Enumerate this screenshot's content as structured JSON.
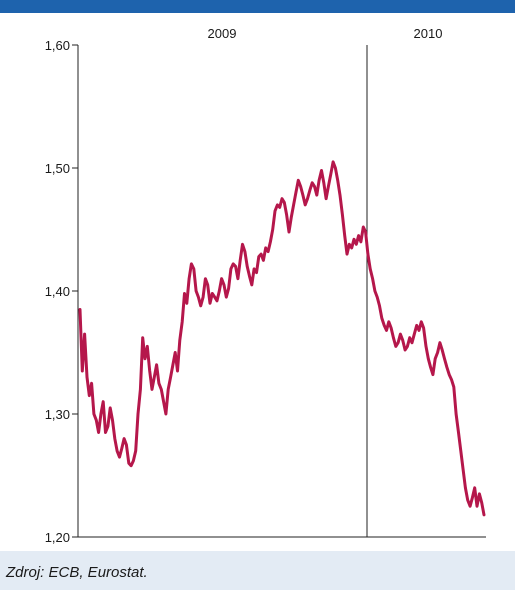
{
  "chart_data": {
    "type": "line",
    "title": "",
    "xlabel": "",
    "ylabel": "",
    "ylim": [
      1.2,
      1.6
    ],
    "yticks": [
      "1,20",
      "1,30",
      "1,40",
      "1,50",
      "1,60"
    ],
    "year_labels": [
      "2009",
      "2010"
    ],
    "grid": false,
    "colors": {
      "line": "#b5174b",
      "accent_bar": "#1e63ad",
      "background": "#e3ebf4",
      "plot_bg": "#ffffff"
    },
    "series": [
      {
        "values": [
          1.385,
          1.335,
          1.365,
          1.33,
          1.315,
          1.325,
          1.3,
          1.295,
          1.285,
          1.3,
          1.31,
          1.285,
          1.29,
          1.305,
          1.295,
          1.28,
          1.27,
          1.265,
          1.272,
          1.28,
          1.275,
          1.26,
          1.258,
          1.262,
          1.27,
          1.3,
          1.32,
          1.362,
          1.345,
          1.355,
          1.335,
          1.32,
          1.33,
          1.34,
          1.325,
          1.32,
          1.31,
          1.3,
          1.32,
          1.33,
          1.34,
          1.35,
          1.335,
          1.36,
          1.375,
          1.398,
          1.39,
          1.41,
          1.422,
          1.418,
          1.4,
          1.395,
          1.388,
          1.395,
          1.41,
          1.405,
          1.39,
          1.398,
          1.395,
          1.392,
          1.4,
          1.41,
          1.405,
          1.395,
          1.402,
          1.418,
          1.422,
          1.42,
          1.41,
          1.425,
          1.438,
          1.432,
          1.42,
          1.412,
          1.405,
          1.418,
          1.415,
          1.428,
          1.43,
          1.425,
          1.435,
          1.432,
          1.44,
          1.45,
          1.465,
          1.47,
          1.468,
          1.475,
          1.472,
          1.462,
          1.448,
          1.46,
          1.47,
          1.48,
          1.49,
          1.485,
          1.478,
          1.47,
          1.475,
          1.482,
          1.488,
          1.485,
          1.478,
          1.49,
          1.498,
          1.488,
          1.475,
          1.485,
          1.495,
          1.505,
          1.5,
          1.49,
          1.478,
          1.462,
          1.445,
          1.43,
          1.438,
          1.435,
          1.442,
          1.438,
          1.445,
          1.44,
          1.452,
          1.448,
          1.43,
          1.418,
          1.41,
          1.4,
          1.395,
          1.388,
          1.378,
          1.372,
          1.368,
          1.375,
          1.37,
          1.362,
          1.355,
          1.358,
          1.365,
          1.36,
          1.352,
          1.355,
          1.362,
          1.358,
          1.365,
          1.372,
          1.368,
          1.375,
          1.37,
          1.355,
          1.345,
          1.338,
          1.332,
          1.345,
          1.35,
          1.358,
          1.352,
          1.345,
          1.338,
          1.332,
          1.328,
          1.322,
          1.3,
          1.285,
          1.27,
          1.255,
          1.24,
          1.23,
          1.225,
          1.232,
          1.24,
          1.225,
          1.235,
          1.228,
          1.218
        ]
      }
    ]
  },
  "footer": {
    "source": "Zdroj: ECB, Eurostat."
  }
}
